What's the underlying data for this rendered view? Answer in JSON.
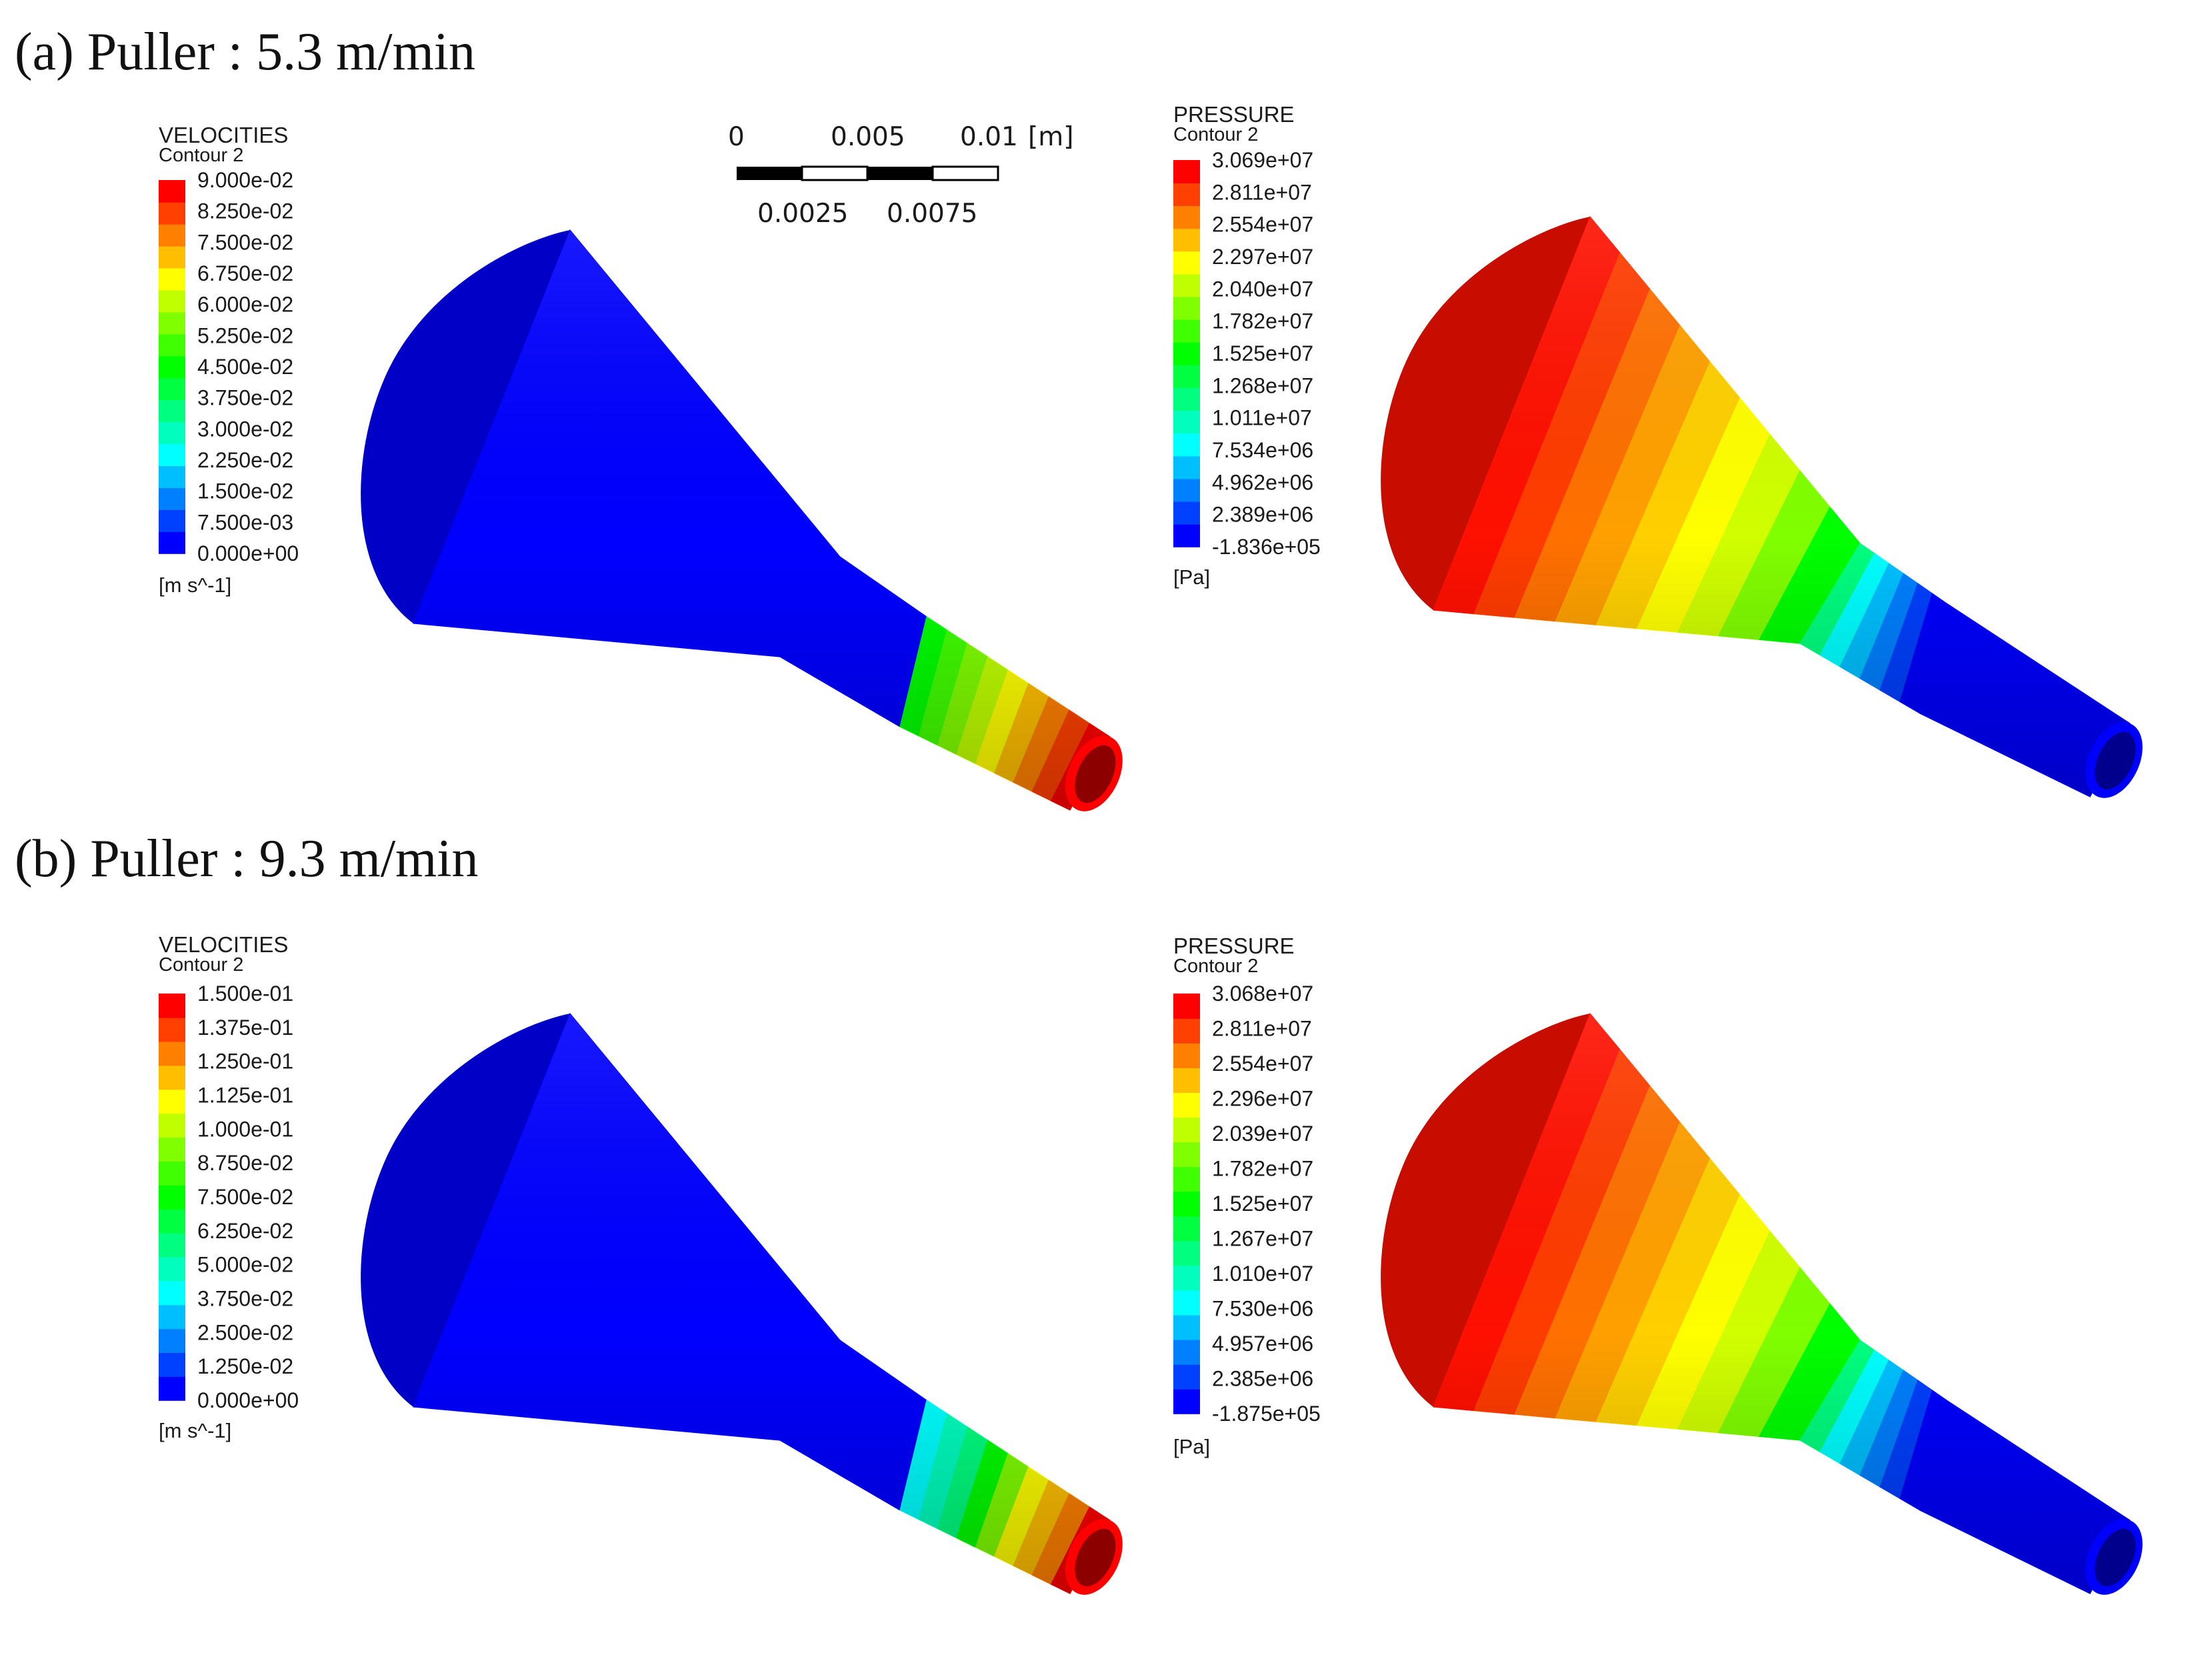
{
  "colormap": [
    "#0000ff",
    "#0040ff",
    "#0080ff",
    "#00bfff",
    "#00ffff",
    "#00ffbf",
    "#00ff80",
    "#00ff40",
    "#00ff00",
    "#40ff00",
    "#80ff00",
    "#bfff00",
    "#ffff00",
    "#ffbf00",
    "#ff8000",
    "#ff4000",
    "#ff0000"
  ],
  "scale_bar": {
    "top_labels": [
      "0",
      "0.005",
      "0.01",
      "[m]"
    ],
    "bottom_labels": [
      "0.0025",
      "0.0075"
    ]
  },
  "panels": [
    {
      "title": "(a) Puller : 5.3 m/min",
      "velocity": {
        "title": "VELOCITIES",
        "subtitle": "Contour 2",
        "unit": "[m s^-1]",
        "ticks": [
          "9.000e-02",
          "8.250e-02",
          "7.500e-02",
          "6.750e-02",
          "6.000e-02",
          "5.250e-02",
          "4.500e-02",
          "3.750e-02",
          "3.000e-02",
          "2.250e-02",
          "1.500e-02",
          "7.500e-03",
          "0.000e+00"
        ],
        "die_colors": {
          "mouth": "#0000ff",
          "neck": "#0000ff",
          "tip": [
            "#00ff00",
            "#40ff00",
            "#80ff00",
            "#bfff00",
            "#ffff00",
            "#ffbf00",
            "#ff8000",
            "#ff4000",
            "#ff0000"
          ]
        }
      },
      "pressure": {
        "title": "PRESSURE",
        "subtitle": "Contour 2",
        "unit": "[Pa]",
        "ticks": [
          "3.069e+07",
          "2.811e+07",
          "2.554e+07",
          "2.297e+07",
          "2.040e+07",
          "1.782e+07",
          "1.525e+07",
          "1.268e+07",
          "1.011e+07",
          "7.534e+06",
          "4.962e+06",
          "2.389e+06",
          "-1.836e+05"
        ],
        "die_colors": {
          "mouth": [
            "#ff1000",
            "#ff3c00",
            "#ff7000",
            "#ffa000",
            "#ffd000",
            "#ffff00",
            "#d0ff00",
            "#80ff00",
            "#00ff00"
          ],
          "neck": [
            "#00ff80",
            "#00ffff",
            "#00c0ff",
            "#0080ff",
            "#0040ff",
            "#0000ff"
          ],
          "tip": "#0000ff"
        }
      }
    },
    {
      "title": "(b) Puller : 9.3 m/min",
      "velocity": {
        "title": "VELOCITIES",
        "subtitle": "Contour 2",
        "unit": "[m s^-1]",
        "ticks": [
          "1.500e-01",
          "1.375e-01",
          "1.250e-01",
          "1.125e-01",
          "1.000e-01",
          "8.750e-02",
          "7.500e-02",
          "6.250e-02",
          "5.000e-02",
          "3.750e-02",
          "2.500e-02",
          "1.250e-02",
          "0.000e+00"
        ],
        "die_colors": {
          "mouth": "#0000ff",
          "neck": "#0000ff",
          "tip": [
            "#00ffff",
            "#00ffbf",
            "#00ff80",
            "#00ff00",
            "#80ff00",
            "#ffff00",
            "#ffbf00",
            "#ff8000",
            "#ff0000"
          ]
        }
      },
      "pressure": {
        "title": "PRESSURE",
        "subtitle": "Contour 2",
        "unit": "[Pa]",
        "ticks": [
          "3.068e+07",
          "2.811e+07",
          "2.554e+07",
          "2.296e+07",
          "2.039e+07",
          "1.782e+07",
          "1.525e+07",
          "1.267e+07",
          "1.010e+07",
          "7.530e+06",
          "4.957e+06",
          "2.385e+06",
          "-1.875e+05"
        ],
        "die_colors": {
          "mouth": [
            "#ff1000",
            "#ff3c00",
            "#ff7000",
            "#ffa000",
            "#ffd000",
            "#ffff00",
            "#d0ff00",
            "#80ff00",
            "#00ff00"
          ],
          "neck": [
            "#00ff80",
            "#00ffff",
            "#00c0ff",
            "#0080ff",
            "#0040ff",
            "#0000ff"
          ],
          "tip": "#0000ff"
        }
      }
    }
  ]
}
